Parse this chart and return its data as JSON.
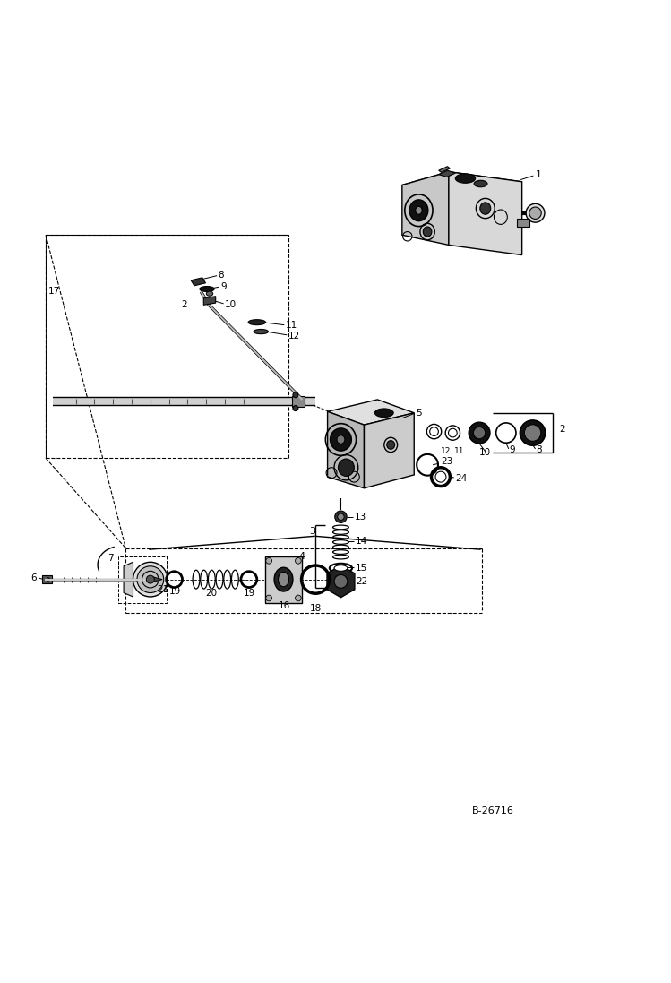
{
  "bg_color": "#ffffff",
  "lc": "#000000",
  "fig_width": 7.49,
  "fig_height": 10.97,
  "watermark": "B-26716"
}
